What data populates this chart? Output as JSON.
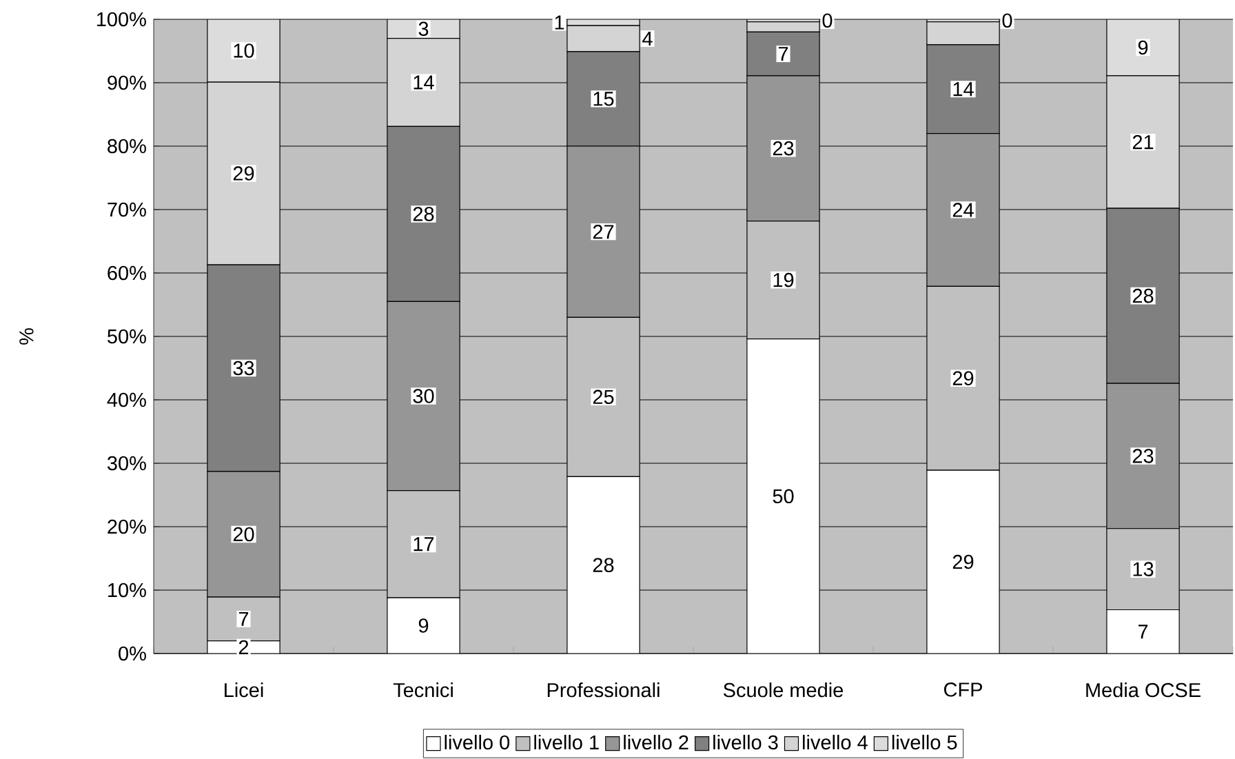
{
  "chart_data": {
    "type": "bar",
    "stacked": true,
    "ylabel": "%",
    "categories": [
      "Licei",
      "Tecnici",
      "Professionali",
      "Scuole medie",
      "CFP",
      "Media OCSE"
    ],
    "ylim": [
      0,
      100
    ],
    "yticks": [
      {
        "value": 0,
        "label": "0%"
      },
      {
        "value": 10,
        "label": "10%"
      },
      {
        "value": 20,
        "label": "20%"
      },
      {
        "value": 30,
        "label": "30%"
      },
      {
        "value": 40,
        "label": "40%"
      },
      {
        "value": 50,
        "label": "50%"
      },
      {
        "value": 60,
        "label": "60%"
      },
      {
        "value": 70,
        "label": "70%"
      },
      {
        "value": 80,
        "label": "80%"
      },
      {
        "value": 90,
        "label": "90%"
      },
      {
        "value": 100,
        "label": "100%"
      }
    ],
    "grid": "y",
    "legend": "bottom",
    "series": [
      {
        "name": "livello 0",
        "color": "#ffffff",
        "values": [
          2.0,
          8.8,
          27.9,
          49.6,
          28.9,
          6.9
        ],
        "value_labels": [
          "2",
          "9",
          "28",
          "50",
          "29",
          "7"
        ]
      },
      {
        "name": "livello 1",
        "color": "#c0c0c0",
        "values": [
          6.9,
          16.9,
          25.1,
          18.6,
          29.0,
          12.8
        ],
        "value_labels": [
          "7",
          "17",
          "25",
          "19",
          "29",
          "13"
        ]
      },
      {
        "name": "livello 2",
        "color": "#969696",
        "values": [
          19.8,
          29.8,
          27.0,
          22.9,
          24.1,
          22.9
        ],
        "value_labels": [
          "20",
          "30",
          "27",
          "23",
          "24",
          "23"
        ]
      },
      {
        "name": "livello 3",
        "color": "#808080",
        "values": [
          32.6,
          27.6,
          14.9,
          6.9,
          14.0,
          27.6
        ],
        "value_labels": [
          "33",
          "28",
          "15",
          "7",
          "14",
          "28"
        ]
      },
      {
        "name": "livello 4",
        "color": "#d4d4d4",
        "values": [
          28.8,
          13.9,
          4.1,
          1.6,
          3.6,
          20.9
        ],
        "value_labels": [
          "29",
          "14",
          "4",
          null,
          null,
          "21"
        ]
      },
      {
        "name": "livello 5",
        "color": "#dcdcdc",
        "values": [
          9.9,
          3.0,
          1.0,
          0.4,
          0.4,
          8.9
        ],
        "value_labels": [
          "10",
          "3",
          "1",
          "0",
          "0",
          "9"
        ]
      }
    ]
  }
}
